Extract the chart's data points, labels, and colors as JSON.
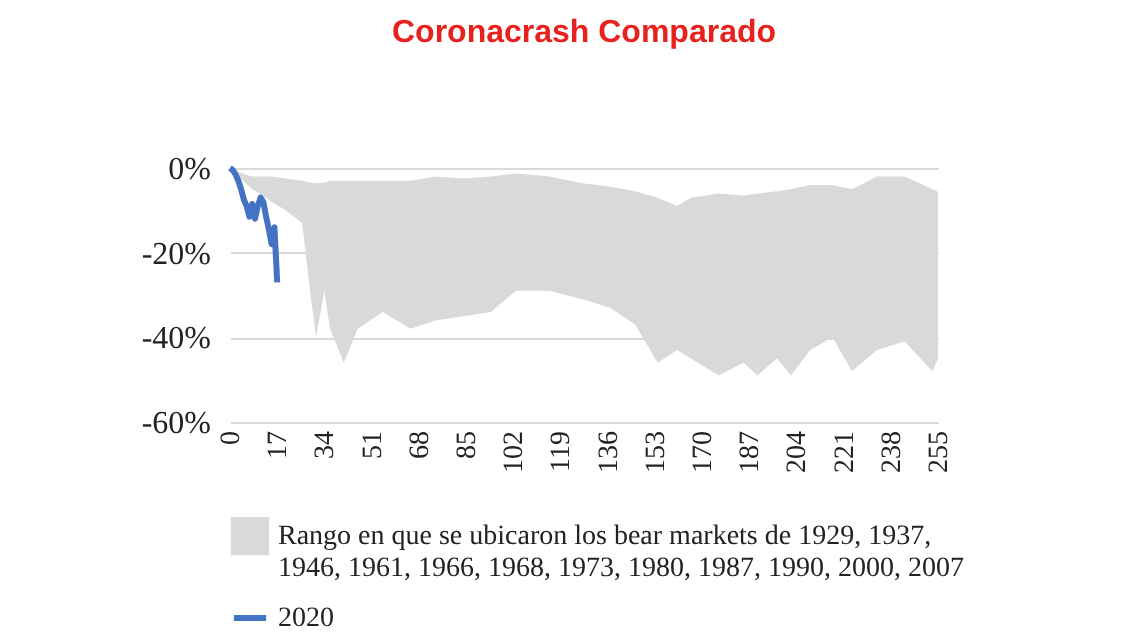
{
  "chart_data": {
    "type": "line",
    "title": "Coronacrash Comparado",
    "xlim": [
      0,
      255
    ],
    "xticks": [
      0,
      17,
      34,
      51,
      68,
      85,
      102,
      119,
      136,
      153,
      170,
      187,
      204,
      221,
      238,
      255
    ],
    "ylim": [
      -60,
      0
    ],
    "yticks": [
      {
        "value": 0,
        "label": "0%"
      },
      {
        "value": -20,
        "label": "-20%"
      },
      {
        "value": -40,
        "label": "-40%"
      },
      {
        "value": -60,
        "label": "-60%"
      }
    ],
    "grid": "y",
    "legend": "bottom",
    "series": [
      {
        "name": "Rango en que se ubicaron los bear markets de 1929, 1937, 1946, 1961, 1966, 1968, 1973, 1980, 1987, 1990, 2000, 2007",
        "color": "#d9d9d9",
        "x": [
          0,
          3,
          8,
          15,
          20,
          26,
          29,
          31,
          34,
          36,
          41,
          46,
          55,
          65,
          74,
          84,
          94,
          103,
          115,
          127,
          137,
          146,
          154,
          161,
          166,
          176,
          185,
          190,
          197,
          202,
          209,
          217,
          224,
          233,
          243,
          253,
          255
        ],
        "values": [
          null,
          null,
          null,
          null,
          null,
          null,
          null,
          null,
          null,
          null,
          null,
          null,
          null,
          null,
          null,
          null,
          null,
          null,
          null,
          null,
          null,
          null,
          null,
          null,
          null,
          null,
          null,
          null,
          null,
          null,
          null,
          null,
          null,
          null,
          null,
          null,
          null
        ],
        "upper": [
          0,
          -1,
          -2,
          -2,
          -2.5,
          -3,
          -3.5,
          -3.6,
          -3.5,
          -3,
          -3,
          -3,
          -3,
          -3,
          -2,
          -2.5,
          -2,
          -1.3,
          -2,
          -3.6,
          -4.4,
          -5.5,
          -7,
          -9,
          -7,
          -6,
          -6.5,
          -6,
          -5.5,
          -5,
          -4,
          -4,
          -5,
          -2,
          -2,
          -5,
          -5.6
        ],
        "lower": [
          0,
          -2,
          -5,
          -8,
          -10,
          -13,
          -30,
          -40,
          -29,
          -38,
          -46,
          -38,
          -34,
          -38,
          -36,
          -35,
          -34,
          -29,
          -29,
          -31,
          -33,
          -37,
          -46,
          -43,
          -45,
          -49,
          -46,
          -49,
          -45,
          -49,
          -43,
          -40,
          -48,
          -43,
          -41,
          -48,
          -45
        ]
      },
      {
        "name": "2020",
        "color": "#4472c4",
        "x": [
          0,
          1,
          2,
          3,
          4,
          5,
          6,
          7,
          8,
          9,
          10,
          11,
          12,
          13,
          14,
          15,
          16,
          17
        ],
        "values": [
          0,
          -0.5,
          -1.5,
          -3,
          -5,
          -7.5,
          -9,
          -11.5,
          -8.5,
          -12,
          -9,
          -7,
          -8,
          -11.5,
          -14.5,
          -18,
          -14,
          -27
        ]
      }
    ]
  }
}
